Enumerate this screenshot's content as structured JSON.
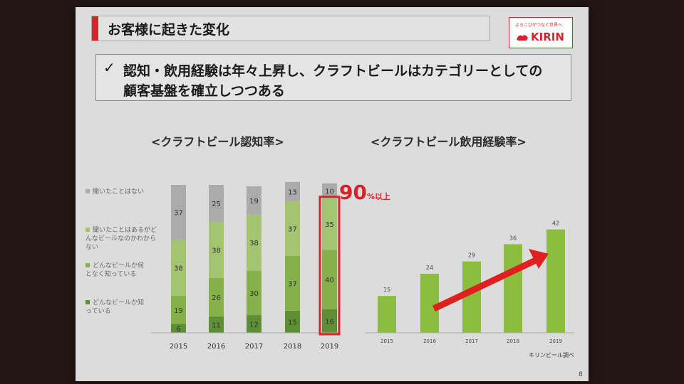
{
  "header": {
    "title": "お客様に起きた変化"
  },
  "logo": {
    "slogan": "よろこびがつなぐ世界へ",
    "name": "KIRIN"
  },
  "message": {
    "check": "✓",
    "line1": "認知・飲用経験は年々上昇し、クラフトビールはカテゴリーとしての",
    "line2": "顧客基盤を確立しつつある"
  },
  "awareness": {
    "title": "<クラフトビール認知率>",
    "legend": [
      "聞いたことはない",
      "聞いたことはあるがどんなビールなのかわからない",
      "どんなビールか何となく知っている",
      "どんなビールか知っている"
    ],
    "highlight_value": "90",
    "highlight_suffix": "%以上"
  },
  "experience": {
    "title": "<クラフトビール飲用経験率>"
  },
  "footnote": "キリンビール調べ",
  "page_number": "8",
  "colors": {
    "accent": "#d8232a",
    "never_heard": "#ababab",
    "heard_only": "#a5c472",
    "somewhat_know": "#86b14a",
    "know": "#5f8f34",
    "bar_green": "#8dbd3f"
  },
  "chart_data": [
    {
      "type": "bar",
      "stacked": true,
      "title": "<クラフトビール認知率>",
      "categories": [
        "2015",
        "2016",
        "2017",
        "2018",
        "2019"
      ],
      "series": [
        {
          "name": "どんなビールか知っている",
          "values": [
            6,
            11,
            12,
            15,
            16
          ]
        },
        {
          "name": "どんなビールか何となく知っている",
          "values": [
            19,
            26,
            30,
            37,
            40
          ]
        },
        {
          "name": "聞いたことはあるがどんなビールなのかわからない",
          "values": [
            38,
            38,
            38,
            37,
            35
          ]
        },
        {
          "name": "聞いたことはない",
          "values": [
            37,
            25,
            19,
            13,
            10
          ]
        }
      ],
      "ylim": [
        0,
        100
      ],
      "legend_position": "left"
    },
    {
      "type": "bar",
      "title": "<クラフトビール飲用経験率>",
      "categories": [
        "2015",
        "2016",
        "2017",
        "2018",
        "2019"
      ],
      "values": [
        15,
        24,
        29,
        36,
        42
      ],
      "ylim": [
        0,
        50
      ]
    }
  ]
}
